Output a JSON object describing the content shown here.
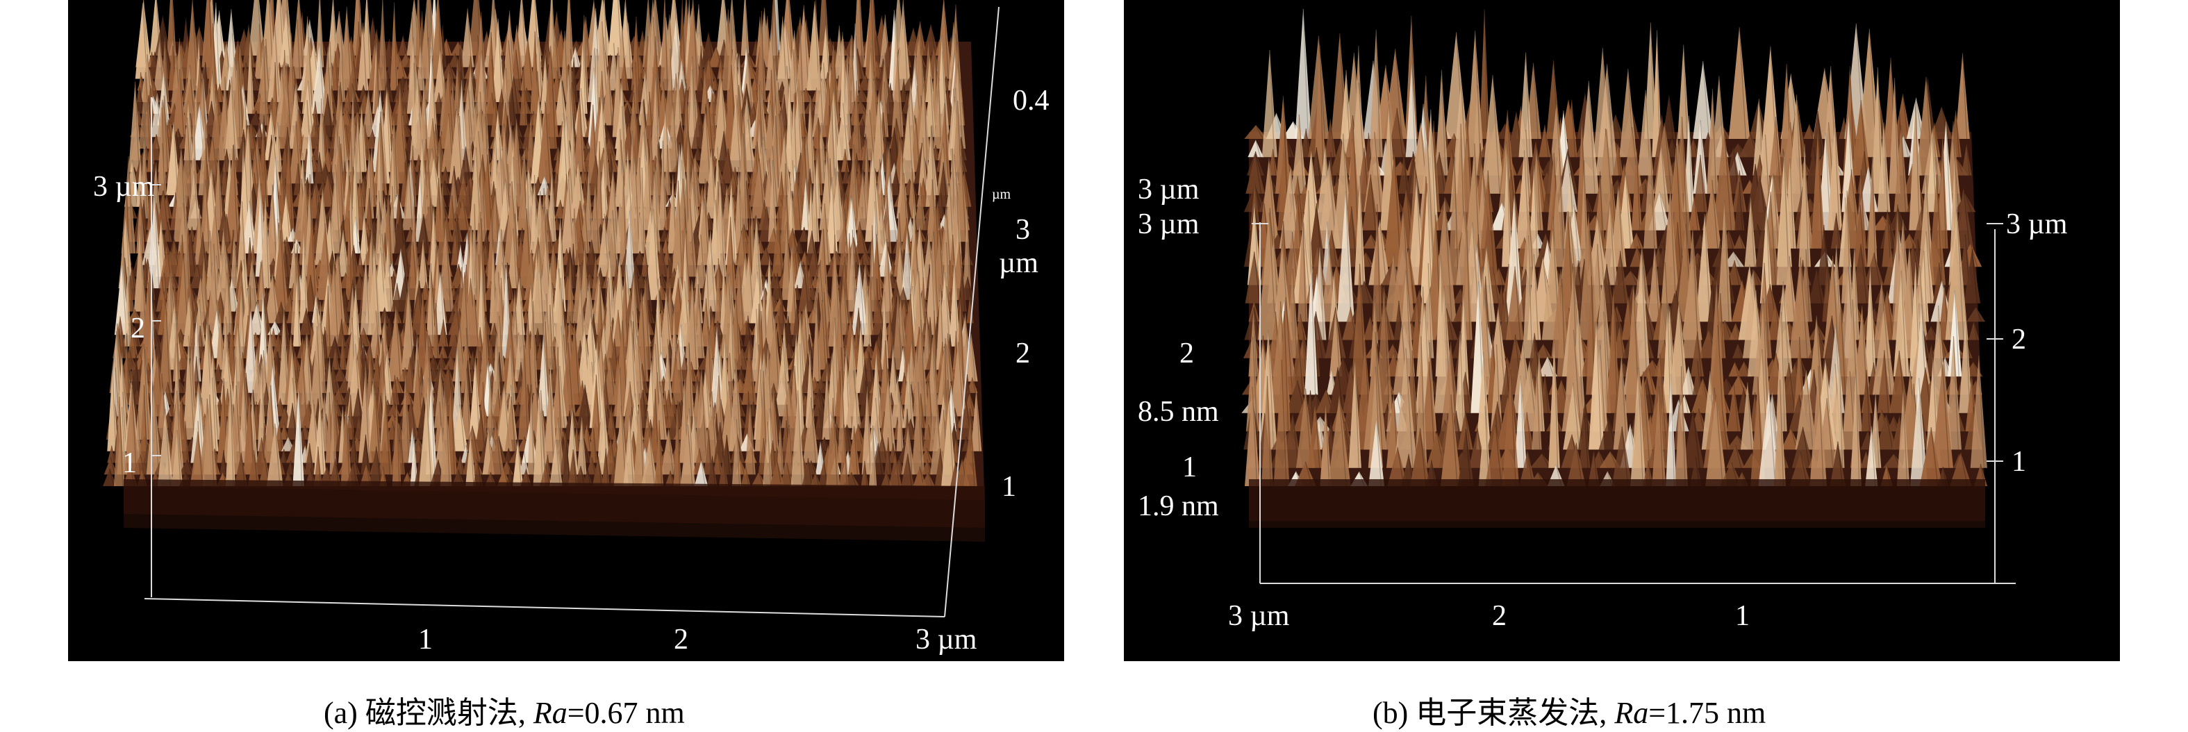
{
  "panel_a": {
    "caption_label": "(a) 磁控溅射法, ",
    "caption_ra_symbol": "Ra",
    "caption_ra_value": "=0.67 nm",
    "axis_labels": {
      "left_3um": "3 µm",
      "left_2": "2",
      "left_1": "1",
      "right_z": "0.4",
      "right_z_unit": "µm",
      "right_3": "3",
      "right_um": "µm",
      "right_2": "2",
      "right_1": "1",
      "bottom_1": "1",
      "bottom_2": "2",
      "bottom_3um": "3 µm"
    }
  },
  "panel_b": {
    "caption_label": "(b) 电子束蒸发法, ",
    "caption_ra_symbol": "Ra",
    "caption_ra_value": "=1.75 nm",
    "axis_labels": {
      "left_3um_a": "3 µm",
      "left_3um_b": "3 µm",
      "left_2": "2",
      "left_z_max": "8.5 nm",
      "left_1": "1",
      "left_z_min": "1.9 nm",
      "right_3um": "3 µm",
      "right_2": "2",
      "right_1": "1",
      "bottom_3um": "3 µm",
      "bottom_2": "2",
      "bottom_1": "1"
    }
  },
  "colors": {
    "background": "#000000",
    "surface_dark": "#3a1a10",
    "surface_mid": "#9a6038",
    "surface_light": "#e8c49a",
    "peak_highlight": "#f4efe4",
    "axis_line": "#dcdcdc"
  }
}
